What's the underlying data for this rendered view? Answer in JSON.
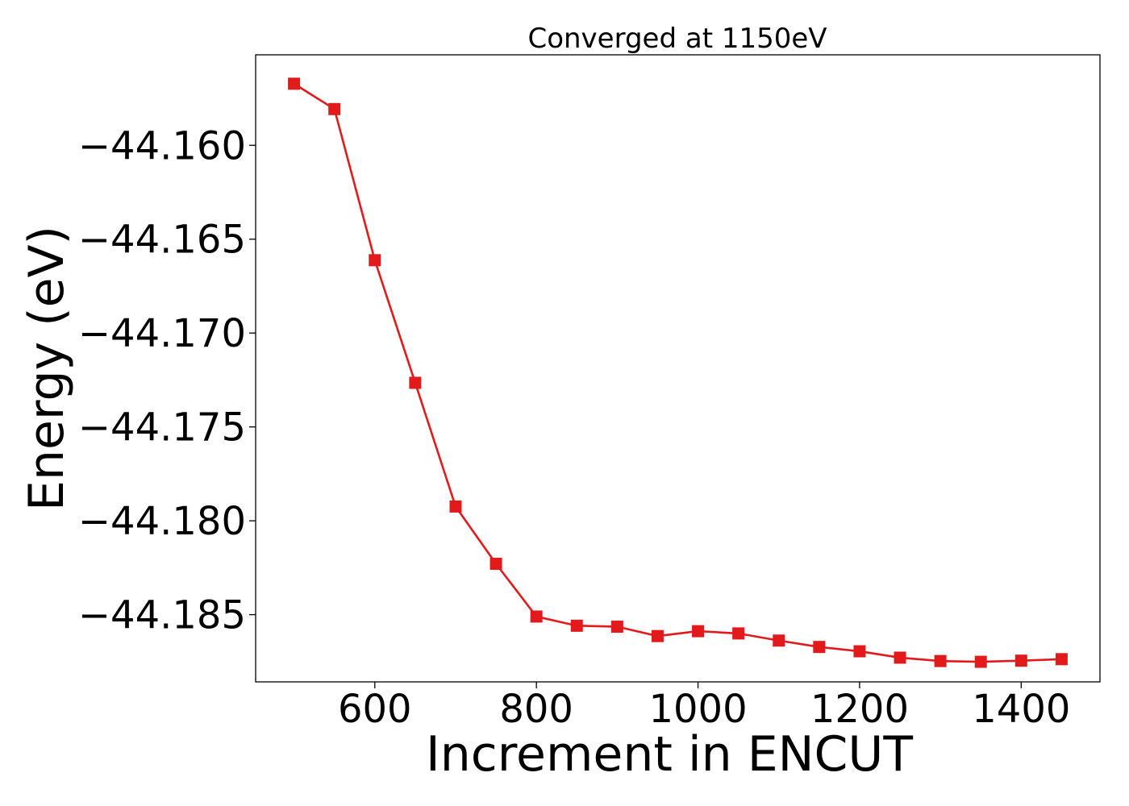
{
  "chart_data": {
    "type": "line",
    "title": "Converged at 1150eV",
    "xlabel": "Increment in ENCUT",
    "ylabel": "Energy (eV)",
    "xlim": [
      452.5,
      1497.5
    ],
    "ylim": [
      -44.18858,
      -44.15518
    ],
    "xticks": [
      600,
      800,
      1000,
      1200,
      1400
    ],
    "xtick_labels": [
      "600",
      "800",
      "1000",
      "1200",
      "1400"
    ],
    "yticks": [
      -44.16,
      -44.165,
      -44.17,
      -44.175,
      -44.18,
      -44.185
    ],
    "ytick_labels": [
      "−44.160",
      "−44.165",
      "−44.170",
      "−44.175",
      "−44.180",
      "−44.185"
    ],
    "grid": false,
    "legend": "none",
    "series": [
      {
        "color": "#e31a1c",
        "marker": "square",
        "x": [
          500,
          550,
          600,
          650,
          700,
          750,
          800,
          850,
          900,
          950,
          1000,
          1050,
          1100,
          1150,
          1200,
          1250,
          1300,
          1350,
          1400,
          1450
        ],
        "y": [
          -44.15672,
          -44.15807,
          -44.16612,
          -44.17265,
          -44.17924,
          -44.18229,
          -44.1851,
          -44.18559,
          -44.18564,
          -44.18614,
          -44.18588,
          -44.186,
          -44.18638,
          -44.18672,
          -44.18695,
          -44.18729,
          -44.18747,
          -44.18751,
          -44.18745,
          -44.18737
        ]
      }
    ]
  }
}
